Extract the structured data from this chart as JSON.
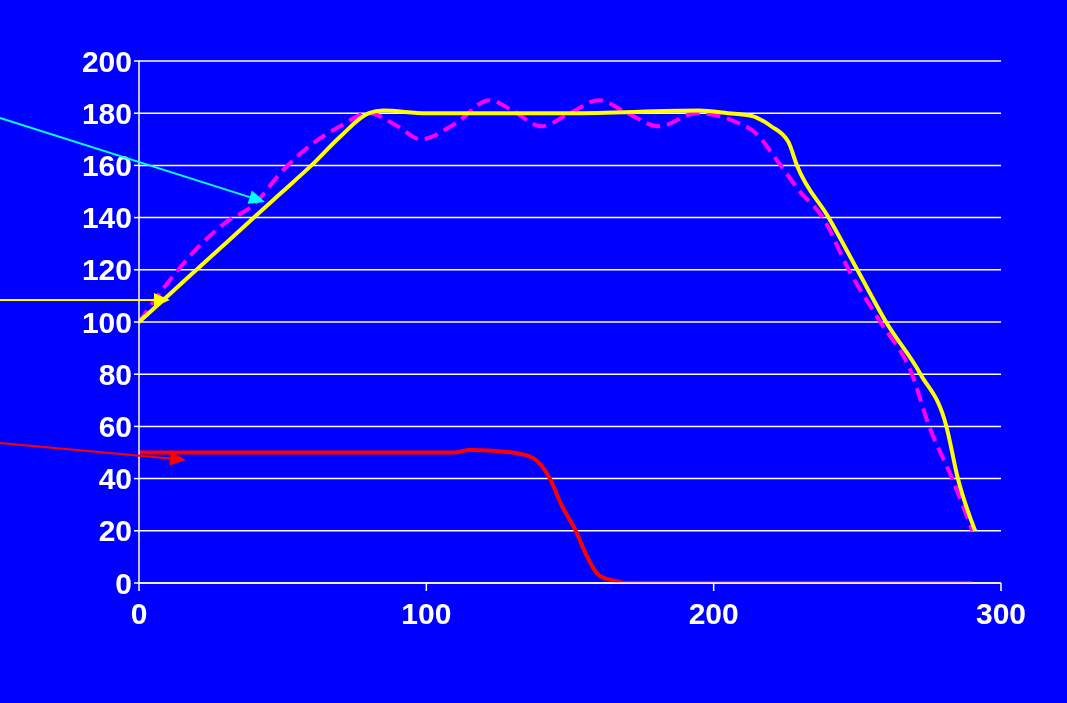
{
  "chart_data": {
    "type": "line",
    "xlim": [
      0,
      300
    ],
    "xticks": [
      0,
      100,
      200,
      300
    ],
    "ylim": [
      0,
      200
    ],
    "yticks": [
      0,
      20,
      40,
      60,
      80,
      100,
      120,
      140,
      160,
      180,
      200
    ],
    "grid": "y",
    "marker": "none",
    "series": [
      {
        "color": "#ff00ff",
        "line_style": "dashed",
        "x": [
          0,
          10,
          20,
          30,
          40,
          50,
          60,
          70,
          80,
          90,
          98,
          110,
          122,
          130,
          140,
          150,
          160,
          170,
          181,
          194,
          207,
          215,
          222,
          230,
          238,
          247,
          258,
          269,
          275,
          283,
          290
        ],
        "values": [
          100,
          115,
          128,
          138,
          145,
          158,
          168,
          175,
          180,
          175,
          170,
          176,
          185,
          181,
          175,
          180,
          185,
          180,
          175,
          180,
          177,
          172,
          162,
          150,
          140,
          120,
          100,
          80,
          60,
          40,
          20
        ]
      },
      {
        "color": "#ffff00",
        "line_style": "solid",
        "x": [
          0,
          10,
          20,
          30,
          40,
          50,
          60,
          70,
          80,
          85,
          100,
          150,
          195,
          205,
          213,
          220,
          226,
          229,
          240,
          250,
          260,
          272,
          281,
          285,
          291
        ],
        "values": [
          100,
          110,
          120,
          130,
          140,
          150,
          160,
          171,
          180,
          181,
          180,
          180,
          181,
          180,
          179,
          175,
          169,
          160,
          140,
          120,
          100,
          80,
          60,
          40,
          20
        ]
      },
      {
        "color": "#ff0000",
        "line_style": "solid",
        "x": [
          0,
          110,
          115,
          130,
          137,
          143,
          147,
          152,
          156,
          160,
          165,
          170,
          180,
          185,
          190,
          290
        ],
        "values": [
          50,
          50,
          51,
          50,
          48,
          40,
          30,
          20,
          10,
          3,
          1,
          0,
          0,
          0,
          0,
          0
        ]
      }
    ]
  }
}
